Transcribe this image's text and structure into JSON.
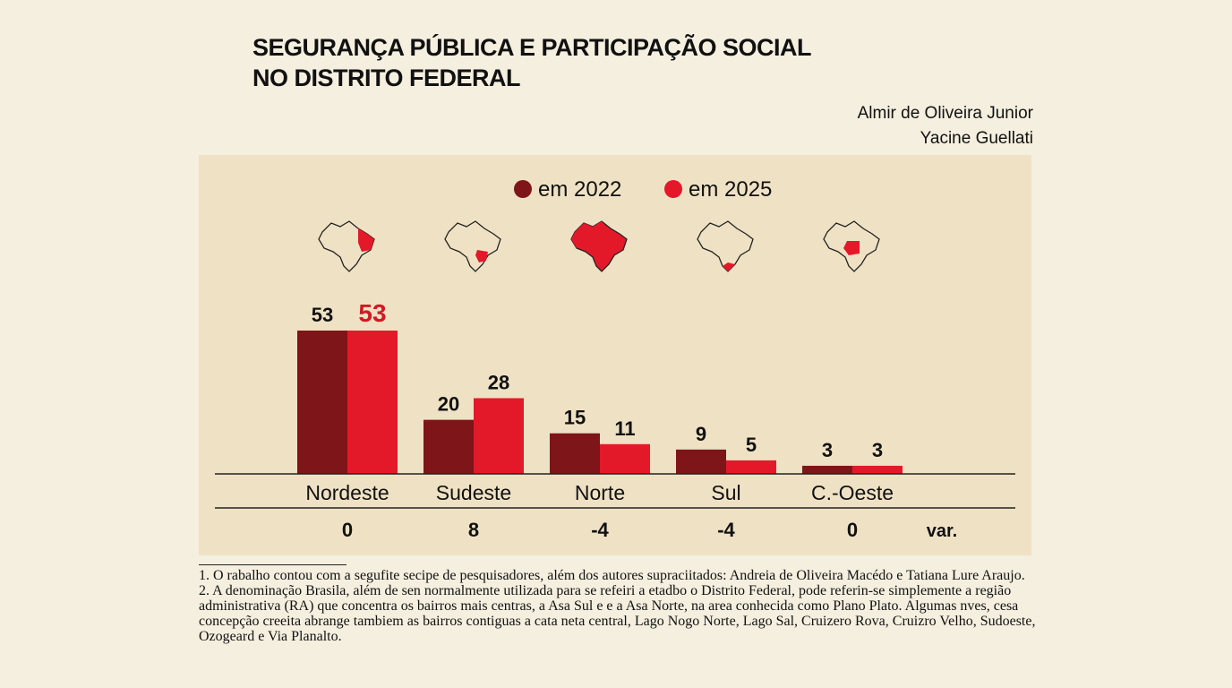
{
  "header": {
    "title_line1": "SEGURANÇA PÚBLICA E PARTICIPAÇÃO SOCIAL",
    "title_line2": "NO DISTRITO FEDERAL",
    "authors": [
      "Almir de Oliveira Junior",
      "Yacine Guellati"
    ]
  },
  "chart_data": {
    "type": "bar",
    "categories": [
      "Nordeste",
      "Sudeste",
      "Norte",
      "Sul",
      "C.-Oeste"
    ],
    "series": [
      {
        "name": "em 2022",
        "values": [
          53,
          20,
          15,
          9,
          3
        ],
        "color": "#7e1518"
      },
      {
        "name": "em 2025",
        "values": [
          53,
          28,
          11,
          5,
          3
        ],
        "color": "#e3192a"
      }
    ],
    "variation": {
      "label": "var.",
      "values": [
        "0",
        "8",
        "-4",
        "-4",
        "0"
      ]
    },
    "legend": "top-center",
    "ylim": [
      0,
      53
    ],
    "icons": [
      "brazil-map-nordeste-icon",
      "brazil-map-sudeste-icon",
      "brazil-map-norte-icon",
      "brazil-map-sul-icon",
      "brazil-map-centro-oeste-icon"
    ]
  },
  "footnotes": [
    "1. O rabalho contou com a segufite secipe de pesquisadores, além dos autores supraciitados: Andreia de Oliveira Macédo e Tatiana Lure Araujo.",
    "2. A denominação Brasila, além de sen normalmente utilizada para se refeiri a etadbo o Distrito Federal, pode referin-se simplemente a região administrativa (RA) que concentra os bairros mais centras, a Asa Sul e e a Asa Norte, na area conhecida como Plano Plato. Algumas nves, cesa concepção creeita abrange tambiem as bairros contiguas a cata neta central, Lago Nogo Norte, Lago Sal, Cruizero Rova, Cruizro Velho, Sudoeste, Ozogeard e Via Planalto."
  ]
}
